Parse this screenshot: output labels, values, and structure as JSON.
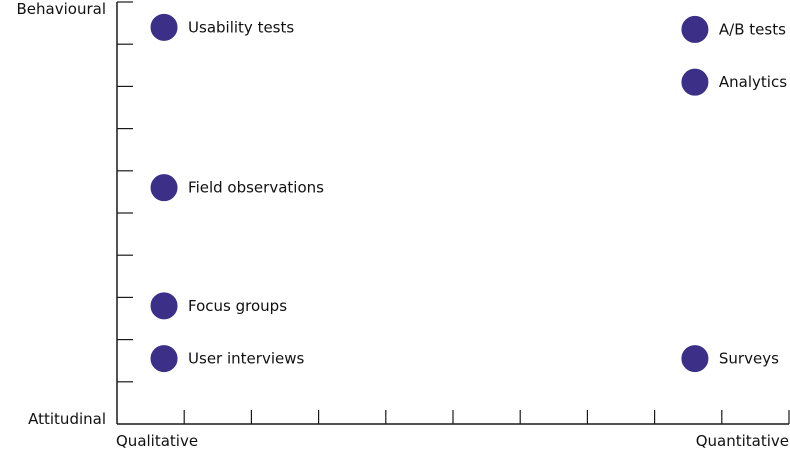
{
  "chart_data": {
    "type": "scatter",
    "title": "",
    "y_axis": {
      "top_label": "Behavioural",
      "bottom_label": "Attitudinal",
      "ylim": [
        0,
        10
      ],
      "ticks": 10
    },
    "x_axis": {
      "left_label": "Qualitative",
      "right_label": "Quantitative",
      "xlim": [
        0,
        10
      ],
      "ticks": 10
    },
    "grid": false,
    "marker_color": "#3b2f87",
    "points": [
      {
        "label": "Usability tests",
        "x": 0.7,
        "y": 9.4
      },
      {
        "label": "A/B tests",
        "x": 8.6,
        "y": 9.35
      },
      {
        "label": "Analytics",
        "x": 8.6,
        "y": 8.1
      },
      {
        "label": "Field observations",
        "x": 0.7,
        "y": 5.6
      },
      {
        "label": "Focus groups",
        "x": 0.7,
        "y": 2.8
      },
      {
        "label": "User interviews",
        "x": 0.7,
        "y": 1.55
      },
      {
        "label": "Surveys",
        "x": 8.6,
        "y": 1.55
      }
    ]
  }
}
